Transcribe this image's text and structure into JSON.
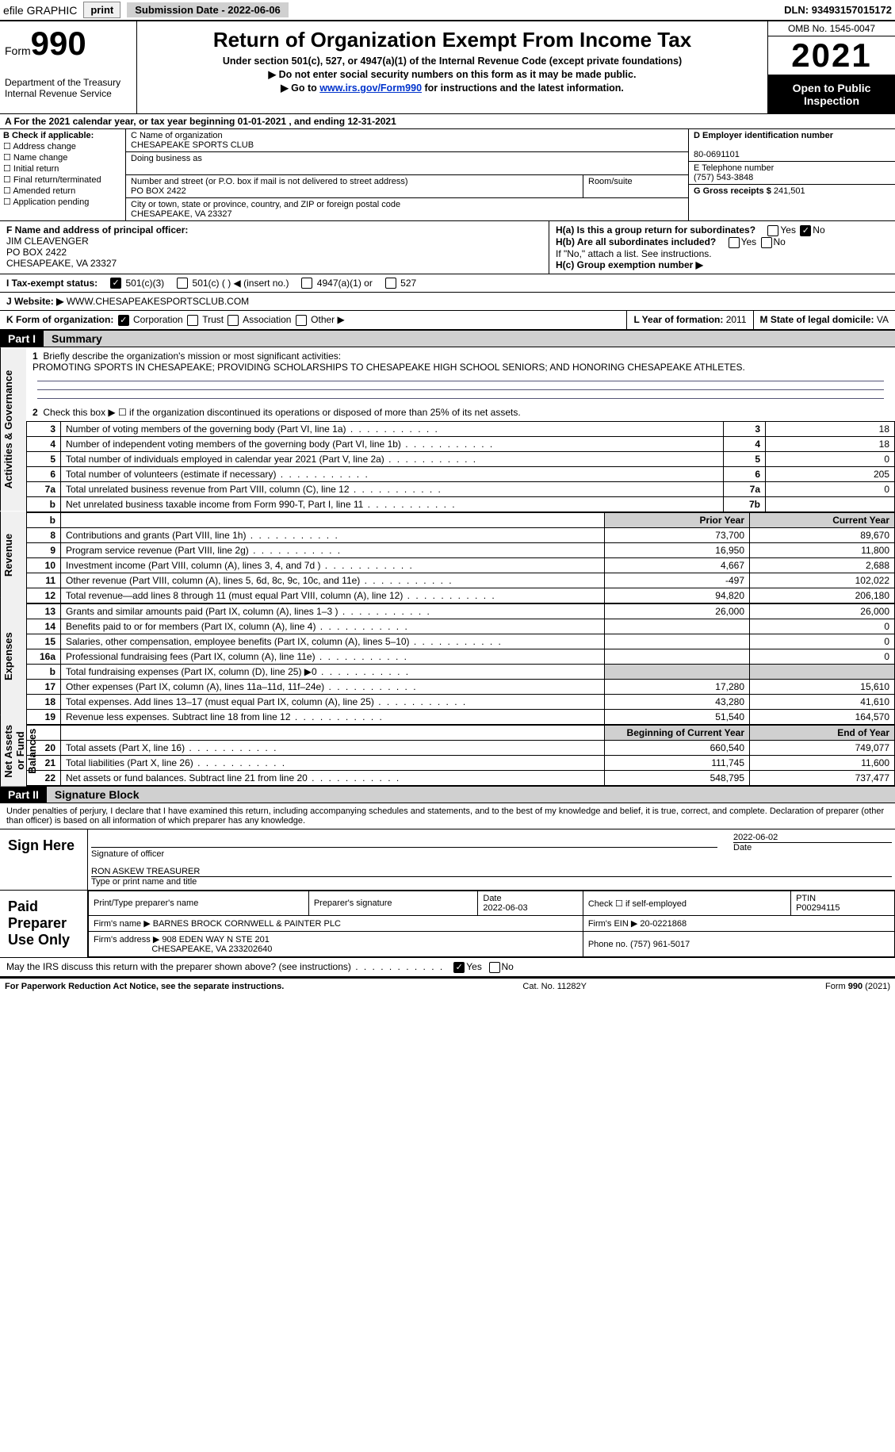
{
  "topbar": {
    "efile": "efile GRAPHIC",
    "print": "print",
    "subdate_label": "Submission Date - ",
    "subdate": "2022-06-06",
    "dln_label": "DLN: ",
    "dln": "93493157015172"
  },
  "header": {
    "form_word": "Form",
    "form_num": "990",
    "dept": "Department of the Treasury",
    "irs": "Internal Revenue Service",
    "title": "Return of Organization Exempt From Income Tax",
    "sub1": "Under section 501(c), 527, or 4947(a)(1) of the Internal Revenue Code (except private foundations)",
    "sub2": "▶ Do not enter social security numbers on this form as it may be made public.",
    "sub3_pre": "▶ Go to ",
    "sub3_link": "www.irs.gov/Form990",
    "sub3_post": " for instructions and the latest information.",
    "omb": "OMB No. 1545-0047",
    "year": "2021",
    "open": "Open to Public Inspection"
  },
  "lineA": {
    "text": "A For the 2021 calendar year, or tax year beginning 01-01-2021   , and ending 12-31-2021"
  },
  "boxB": {
    "label": "B Check if applicable:",
    "opts": [
      "Address change",
      "Name change",
      "Initial return",
      "Final return/terminated",
      "Amended return",
      "Application pending"
    ]
  },
  "boxC": {
    "label": "C Name of organization",
    "name": "CHESAPEAKE SPORTS CLUB",
    "dba_label": "Doing business as",
    "street_label": "Number and street (or P.O. box if mail is not delivered to street address)",
    "room_label": "Room/suite",
    "street": "PO BOX 2422",
    "city_label": "City or town, state or province, country, and ZIP or foreign postal code",
    "city": "CHESAPEAKE, VA  23327"
  },
  "boxDE": {
    "d_label": "D Employer identification number",
    "ein": "80-0691101",
    "e_label": "E Telephone number",
    "phone": "(757) 543-3848",
    "g_label": "G Gross receipts $ ",
    "gross": "241,501"
  },
  "boxF": {
    "label": "F  Name and address of principal officer:",
    "name": "JIM CLEAVENGER",
    "addr1": "PO BOX 2422",
    "addr2": "CHESAPEAKE, VA  23327"
  },
  "boxH": {
    "ha": "H(a)  Is this a group return for subordinates?",
    "hb": "H(b)  Are all subordinates included?",
    "hb_note": "If \"No,\" attach a list. See instructions.",
    "hc": "H(c)  Group exemption number ▶",
    "yes": "Yes",
    "no": "No"
  },
  "taxI": {
    "label": "I   Tax-exempt status:",
    "o1": "501(c)(3)",
    "o2": "501(c) (  ) ◀ (insert no.)",
    "o3": "4947(a)(1) or",
    "o4": "527"
  },
  "webJ": {
    "label": "J   Website: ▶ ",
    "url": "WWW.CHESAPEAKESPORTSCLUB.COM"
  },
  "klm": {
    "k": "K Form of organization:",
    "k1": "Corporation",
    "k2": "Trust",
    "k3": "Association",
    "k4": "Other ▶",
    "l_label": "L Year of formation: ",
    "l": "2011",
    "m_label": "M State of legal domicile: ",
    "m": "VA"
  },
  "part1": {
    "hdr": "Part I",
    "title": "Summary",
    "q1": "Briefly describe the organization's mission or most significant activities:",
    "mission": "PROMOTING SPORTS IN CHESAPEAKE; PROVIDING SCHOLARSHIPS TO CHESAPEAKE HIGH SCHOOL SENIORS; AND HONORING CHESAPEAKE ATHLETES.",
    "q2": "Check this box ▶ ☐  if the organization discontinued its operations or disposed of more than 25% of its net assets.",
    "rows_gov": [
      {
        "n": "3",
        "t": "Number of voting members of the governing body (Part VI, line 1a)",
        "box": "3",
        "v": "18"
      },
      {
        "n": "4",
        "t": "Number of independent voting members of the governing body (Part VI, line 1b)",
        "box": "4",
        "v": "18"
      },
      {
        "n": "5",
        "t": "Total number of individuals employed in calendar year 2021 (Part V, line 2a)",
        "box": "5",
        "v": "0"
      },
      {
        "n": "6",
        "t": "Total number of volunteers (estimate if necessary)",
        "box": "6",
        "v": "205"
      },
      {
        "n": "7a",
        "t": "Total unrelated business revenue from Part VIII, column (C), line 12",
        "box": "7a",
        "v": "0"
      },
      {
        "n": "b",
        "t": "Net unrelated business taxable income from Form 990-T, Part I, line 11",
        "box": "7b",
        "v": ""
      }
    ],
    "prior": "Prior Year",
    "curr": "Current Year",
    "rows_rev": [
      {
        "n": "8",
        "t": "Contributions and grants (Part VIII, line 1h)",
        "p": "73,700",
        "c": "89,670"
      },
      {
        "n": "9",
        "t": "Program service revenue (Part VIII, line 2g)",
        "p": "16,950",
        "c": "11,800"
      },
      {
        "n": "10",
        "t": "Investment income (Part VIII, column (A), lines 3, 4, and 7d )",
        "p": "4,667",
        "c": "2,688"
      },
      {
        "n": "11",
        "t": "Other revenue (Part VIII, column (A), lines 5, 6d, 8c, 9c, 10c, and 11e)",
        "p": "-497",
        "c": "102,022"
      },
      {
        "n": "12",
        "t": "Total revenue—add lines 8 through 11 (must equal Part VIII, column (A), line 12)",
        "p": "94,820",
        "c": "206,180"
      }
    ],
    "rows_exp": [
      {
        "n": "13",
        "t": "Grants and similar amounts paid (Part IX, column (A), lines 1–3 )",
        "p": "26,000",
        "c": "26,000"
      },
      {
        "n": "14",
        "t": "Benefits paid to or for members (Part IX, column (A), line 4)",
        "p": "",
        "c": "0"
      },
      {
        "n": "15",
        "t": "Salaries, other compensation, employee benefits (Part IX, column (A), lines 5–10)",
        "p": "",
        "c": "0"
      },
      {
        "n": "16a",
        "t": "Professional fundraising fees (Part IX, column (A), line 11e)",
        "p": "",
        "c": "0"
      },
      {
        "n": "b",
        "t": "Total fundraising expenses (Part IX, column (D), line 25) ▶0",
        "p": "GREY",
        "c": "GREY"
      },
      {
        "n": "17",
        "t": "Other expenses (Part IX, column (A), lines 11a–11d, 11f–24e)",
        "p": "17,280",
        "c": "15,610"
      },
      {
        "n": "18",
        "t": "Total expenses. Add lines 13–17 (must equal Part IX, column (A), line 25)",
        "p": "43,280",
        "c": "41,610"
      },
      {
        "n": "19",
        "t": "Revenue less expenses. Subtract line 18 from line 12",
        "p": "51,540",
        "c": "164,570"
      }
    ],
    "beg": "Beginning of Current Year",
    "end": "End of Year",
    "rows_net": [
      {
        "n": "20",
        "t": "Total assets (Part X, line 16)",
        "p": "660,540",
        "c": "749,077"
      },
      {
        "n": "21",
        "t": "Total liabilities (Part X, line 26)",
        "p": "111,745",
        "c": "11,600"
      },
      {
        "n": "22",
        "t": "Net assets or fund balances. Subtract line 21 from line 20",
        "p": "548,795",
        "c": "737,477"
      }
    ],
    "tabs": {
      "gov": "Activities & Governance",
      "rev": "Revenue",
      "exp": "Expenses",
      "net": "Net Assets or Fund Balances"
    }
  },
  "part2": {
    "hdr": "Part II",
    "title": "Signature Block",
    "decl": "Under penalties of perjury, I declare that I have examined this return, including accompanying schedules and statements, and to the best of my knowledge and belief, it is true, correct, and complete. Declaration of preparer (other than officer) is based on all information of which preparer has any knowledge."
  },
  "sign": {
    "here": "Sign Here",
    "sigoff": "Signature of officer",
    "date": "Date",
    "sigdate": "2022-06-02",
    "namet": "Type or print name and title",
    "name": "RON ASKEW  TREASURER"
  },
  "paid": {
    "here": "Paid Preparer Use Only",
    "h1": "Print/Type preparer's name",
    "h2": "Preparer's signature",
    "h3": "Date",
    "h4": "Check ☐ if self-employed",
    "h5": "PTIN",
    "date": "2022-06-03",
    "ptin": "P00294115",
    "firmn_l": "Firm's name    ▶ ",
    "firmn": "BARNES BROCK CORNWELL & PAINTER PLC",
    "ein_l": "Firm's EIN ▶ ",
    "ein": "20-0221868",
    "addr_l": "Firm's address ▶ ",
    "addr": "908 EDEN WAY N STE 201",
    "addr2": "CHESAPEAKE, VA  233202640",
    "phone_l": "Phone no. ",
    "phone": "(757) 961-5017"
  },
  "footer": {
    "q": "May the IRS discuss this return with the preparer shown above? (see instructions)",
    "yes": "Yes",
    "no": "No",
    "pra": "For Paperwork Reduction Act Notice, see the separate instructions.",
    "cat": "Cat. No. 11282Y",
    "form": "Form 990 (2021)"
  }
}
